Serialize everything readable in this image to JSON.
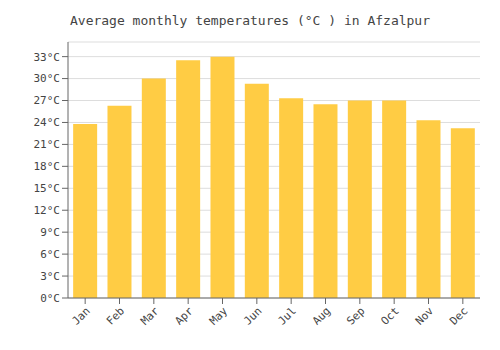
{
  "chart_data": {
    "type": "bar",
    "title": "Average monthly temperatures (°C ) in Afzalpur",
    "categories": [
      "Jan",
      "Feb",
      "Mar",
      "Apr",
      "May",
      "Jun",
      "Jul",
      "Aug",
      "Sep",
      "Oct",
      "Nov",
      "Dec"
    ],
    "values": [
      23.8,
      26.3,
      30.0,
      32.5,
      33.0,
      29.3,
      27.3,
      26.5,
      27.0,
      27.0,
      24.3,
      23.2
    ],
    "color": "#FFCC44",
    "ylim": [
      0,
      35
    ],
    "yticks": [
      {
        "value": 0,
        "label": "0°C"
      },
      {
        "value": 3,
        "label": "3°C"
      },
      {
        "value": 6,
        "label": "6°C"
      },
      {
        "value": 9,
        "label": "9°C"
      },
      {
        "value": 12,
        "label": "12°C"
      },
      {
        "value": 15,
        "label": "15°C"
      },
      {
        "value": 18,
        "label": "18°C"
      },
      {
        "value": 21,
        "label": "21°C"
      },
      {
        "value": 24,
        "label": "24°C"
      },
      {
        "value": 27,
        "label": "27°C"
      },
      {
        "value": 30,
        "label": "30°C"
      },
      {
        "value": 33,
        "label": "33°C"
      }
    ],
    "grid": true
  }
}
